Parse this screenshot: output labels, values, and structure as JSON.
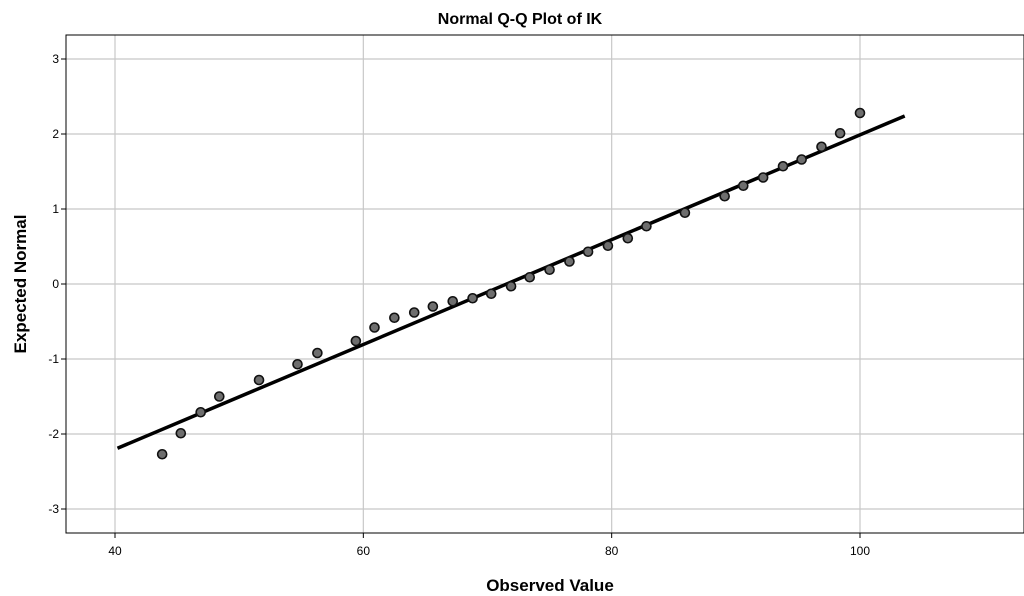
{
  "chart_data": {
    "type": "scatter",
    "title": "Normal Q-Q Plot of IK",
    "xlabel": "Observed Value",
    "ylabel": "Expected Normal",
    "xlim": [
      36,
      116
    ],
    "ylim": [
      -3.3,
      3.3
    ],
    "x_ticks": [
      40,
      60,
      80,
      100
    ],
    "y_ticks": [
      3,
      2,
      1,
      0,
      -1,
      -2,
      -3
    ],
    "grid": true,
    "colors": {
      "points": "#6e6e6e",
      "point_edge": "#111111",
      "line": "#000000",
      "grid": "#c8c8c8"
    },
    "points": [
      {
        "x": 43.8,
        "y": -2.27
      },
      {
        "x": 45.3,
        "y": -1.99
      },
      {
        "x": 46.9,
        "y": -1.71
      },
      {
        "x": 48.4,
        "y": -1.5
      },
      {
        "x": 51.6,
        "y": -1.28
      },
      {
        "x": 54.7,
        "y": -1.07
      },
      {
        "x": 56.3,
        "y": -0.92
      },
      {
        "x": 59.4,
        "y": -0.76
      },
      {
        "x": 60.9,
        "y": -0.58
      },
      {
        "x": 62.5,
        "y": -0.45
      },
      {
        "x": 64.1,
        "y": -0.38
      },
      {
        "x": 65.6,
        "y": -0.3
      },
      {
        "x": 67.2,
        "y": -0.23
      },
      {
        "x": 68.8,
        "y": -0.19
      },
      {
        "x": 70.3,
        "y": -0.13
      },
      {
        "x": 71.9,
        "y": -0.03
      },
      {
        "x": 73.4,
        "y": 0.09
      },
      {
        "x": 75.0,
        "y": 0.19
      },
      {
        "x": 76.6,
        "y": 0.3
      },
      {
        "x": 78.1,
        "y": 0.43
      },
      {
        "x": 79.7,
        "y": 0.51
      },
      {
        "x": 81.3,
        "y": 0.61
      },
      {
        "x": 82.8,
        "y": 0.77
      },
      {
        "x": 85.9,
        "y": 0.95
      },
      {
        "x": 89.1,
        "y": 1.17
      },
      {
        "x": 90.6,
        "y": 1.31
      },
      {
        "x": 92.2,
        "y": 1.42
      },
      {
        "x": 93.8,
        "y": 1.57
      },
      {
        "x": 95.3,
        "y": 1.66
      },
      {
        "x": 96.9,
        "y": 1.83
      },
      {
        "x": 98.4,
        "y": 2.01
      },
      {
        "x": 100.0,
        "y": 2.28
      }
    ],
    "reference_line": {
      "x": [
        40.2,
        103.6
      ],
      "y": [
        -2.19,
        2.24
      ]
    }
  }
}
